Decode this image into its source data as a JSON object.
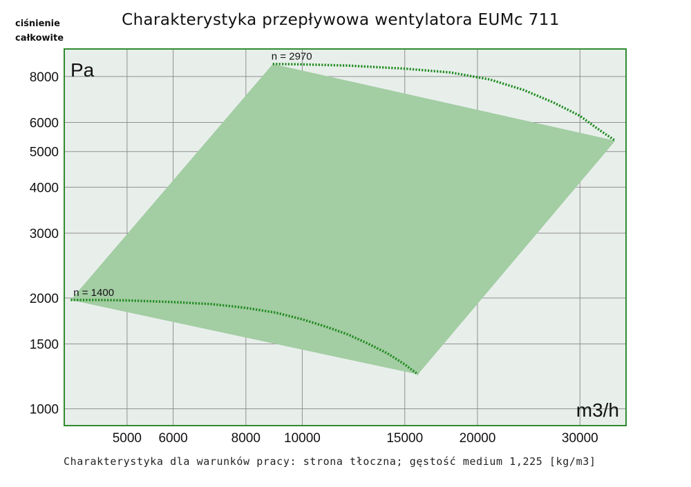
{
  "corner_label": [
    "ciśnienie",
    "całkowite"
  ],
  "title": "Charakterystyka przepływowa wentylatora EUMc 711",
  "footnote": "Charakterystyka dla warunków pracy: strona tłoczna; gęstość medium 1,225 [kg/m3]",
  "colors": {
    "plot_bg": "#e8efeb",
    "frame": "#2e8b2e",
    "grid": "#8f8f8f",
    "area_fill": "#a3cda3",
    "curve": "#1f8a1f"
  },
  "chart_data": {
    "type": "area",
    "title": "Charakterystyka przepływowa wentylatora EUMc 711",
    "xlabel": "m3/h",
    "ylabel": "Pa",
    "x_scale": "log",
    "y_scale": "log",
    "xlim": [
      3900,
      36000
    ],
    "ylim": [
      900,
      9500
    ],
    "grid": true,
    "x_ticks": [
      5000,
      6000,
      8000,
      10000,
      15000,
      20000,
      30000
    ],
    "x_tick_labels": [
      "5000",
      "6000",
      "8000",
      "10000",
      "15000",
      "20000",
      "30000"
    ],
    "y_ticks": [
      1000,
      1500,
      2000,
      3000,
      4000,
      5000,
      6000,
      8000
    ],
    "y_tick_labels": [
      "1000",
      "1500",
      "2000",
      "3000",
      "4000",
      "5000",
      "6000",
      "8000"
    ],
    "series": [
      {
        "name": "n = 2970",
        "style": "dotted",
        "x": [
          8900,
          10000,
          12000,
          15000,
          18000,
          21000,
          24000,
          27000,
          30000,
          32000,
          34500
        ],
        "y": [
          8650,
          8630,
          8560,
          8400,
          8200,
          7850,
          7350,
          6800,
          6250,
          5800,
          5350
        ]
      },
      {
        "name": "n = 1400",
        "style": "dotted",
        "x": [
          4000,
          4500,
          5000,
          6000,
          7000,
          8000,
          9000,
          10000,
          11000,
          12000,
          13000,
          14000,
          15000,
          15800
        ],
        "y": [
          1975,
          1975,
          1970,
          1950,
          1925,
          1880,
          1825,
          1750,
          1670,
          1590,
          1500,
          1415,
          1320,
          1240
        ]
      }
    ],
    "operating_area": {
      "x": [
        4000,
        8900,
        34500,
        15800
      ],
      "y": [
        1975,
        8650,
        5350,
        1240
      ]
    }
  }
}
